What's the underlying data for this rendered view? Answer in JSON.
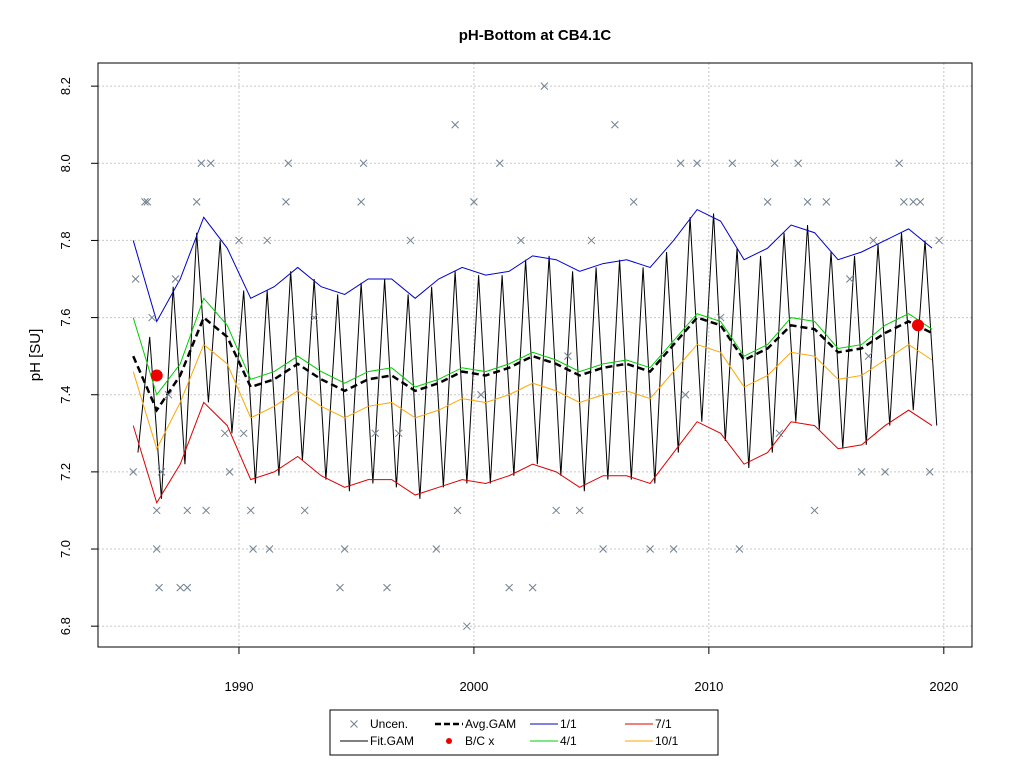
{
  "chart_data": {
    "type": "line",
    "title": "pH-Bottom at CB4.1C",
    "ylabel": "pH [SU]",
    "xlim": [
      1984.0,
      2021.2
    ],
    "ylim": [
      6.746,
      8.26
    ],
    "xticks": [
      1990,
      2000,
      2010,
      2020
    ],
    "yticks": [
      6.8,
      {
        "value": 7,
        "label": "7.0"
      },
      7.2,
      7.4,
      7.6,
      7.8,
      {
        "value": 8,
        "label": "8.0"
      },
      8.2
    ],
    "grid": true,
    "legend": "bottom",
    "series": [
      {
        "name": "Uncen.",
        "style": "points",
        "color": "#708090",
        "x": [
          1985.5,
          1985.6,
          1986.0,
          1986.1,
          1986.3,
          1986.5,
          1986.5,
          1986.6,
          1986.7,
          1987.0,
          1987.3,
          1987.5,
          1987.8,
          1987.8,
          1988.2,
          1988.4,
          1988.6,
          1988.8,
          1989.4,
          1989.6,
          1990.0,
          1990.2,
          1990.5,
          1990.6,
          1991.2,
          1991.3,
          1992.0,
          1992.1,
          1992.8,
          1993.2,
          1994.3,
          1994.5,
          1995.2,
          1995.3,
          1995.8,
          1996.3,
          1996.8,
          1997.3,
          1998.4,
          1999.2,
          1999.3,
          1999.7,
          2000.0,
          2000.3,
          2001.1,
          2001.5,
          2002.0,
          2002.5,
          2003.0,
          2003.5,
          2004.0,
          2004.5,
          2005.0,
          2005.5,
          2006.0,
          2006.8,
          2007.5,
          2008.5,
          2008.8,
          2009.0,
          2009.5,
          2010.5,
          2011.0,
          2011.3,
          2012.5,
          2012.8,
          2013.0,
          2013.8,
          2014.2,
          2014.5,
          2015.0,
          2016.0,
          2016.5,
          2016.8,
          2017.0,
          2017.5,
          2018.1,
          2018.3,
          2018.7,
          2019.0,
          2019.4,
          2019.8
        ],
        "values": [
          7.2,
          7.7,
          7.9,
          7.9,
          7.6,
          7.1,
          7.0,
          6.9,
          7.2,
          7.4,
          7.7,
          6.9,
          6.9,
          7.1,
          7.9,
          8.0,
          7.1,
          8.0,
          7.3,
          7.2,
          7.8,
          7.3,
          7.1,
          7.0,
          7.8,
          7.0,
          7.9,
          8.0,
          7.1,
          7.6,
          6.9,
          7.0,
          7.9,
          8.0,
          7.3,
          6.9,
          7.3,
          7.8,
          7.0,
          8.1,
          7.1,
          6.8,
          7.9,
          7.4,
          8.0,
          6.9,
          7.8,
          6.9,
          8.2,
          7.1,
          7.5,
          7.1,
          7.8,
          7.0,
          8.1,
          7.9,
          7.0,
          7.0,
          8.0,
          7.4,
          8.0,
          7.6,
          8.0,
          7.0,
          7.9,
          8.0,
          7.3,
          8.0,
          7.9,
          7.1,
          7.9,
          7.7,
          7.2,
          7.5,
          7.8,
          7.2,
          8.0,
          7.9,
          7.9,
          7.9,
          7.2,
          7.8
        ]
      },
      {
        "name": "Fit.GAM",
        "style": "line",
        "color": "#000000",
        "x": [
          1985.7,
          1986.2,
          1986.7,
          1987.2,
          1987.7,
          1988.2,
          1988.7,
          1989.2,
          1989.7,
          1990.2,
          1990.7,
          1991.2,
          1991.7,
          1992.2,
          1992.7,
          1993.2,
          1993.7,
          1994.2,
          1994.7,
          1995.2,
          1995.7,
          1996.2,
          1996.7,
          1997.2,
          1997.7,
          1998.2,
          1998.7,
          1999.2,
          1999.7,
          2000.2,
          2000.7,
          2001.2,
          2001.7,
          2002.2,
          2002.7,
          2003.2,
          2003.7,
          2004.2,
          2004.7,
          2005.2,
          2005.7,
          2006.2,
          2006.7,
          2007.2,
          2007.7,
          2008.2,
          2008.7,
          2009.2,
          2009.7,
          2010.2,
          2010.7,
          2011.2,
          2011.7,
          2012.2,
          2012.7,
          2013.2,
          2013.7,
          2014.2,
          2014.7,
          2015.2,
          2015.7,
          2016.2,
          2016.7,
          2017.2,
          2017.7,
          2018.2,
          2018.7,
          2019.2,
          2019.7
        ],
        "values": [
          7.25,
          7.55,
          7.13,
          7.68,
          7.22,
          7.82,
          7.38,
          7.8,
          7.3,
          7.67,
          7.17,
          7.67,
          7.19,
          7.72,
          7.23,
          7.7,
          7.18,
          7.66,
          7.15,
          7.69,
          7.17,
          7.7,
          7.16,
          7.66,
          7.13,
          7.68,
          7.16,
          7.72,
          7.17,
          7.71,
          7.17,
          7.71,
          7.19,
          7.75,
          7.22,
          7.76,
          7.19,
          7.72,
          7.15,
          7.73,
          7.18,
          7.75,
          7.18,
          7.73,
          7.17,
          7.77,
          7.25,
          7.86,
          7.33,
          7.87,
          7.28,
          7.78,
          7.21,
          7.76,
          7.25,
          7.82,
          7.33,
          7.84,
          7.31,
          7.77,
          7.26,
          7.76,
          7.27,
          7.79,
          7.32,
          7.82,
          7.36,
          7.8,
          7.32
        ]
      },
      {
        "name": "Avg.GAM",
        "style": "dashed",
        "color": "#000000",
        "x": [
          1985.5,
          1986.5,
          1987.5,
          1988.5,
          1989.5,
          1990.5,
          1991.5,
          1992.5,
          1993.5,
          1994.5,
          1995.5,
          1996.5,
          1997.5,
          1998.5,
          1999.5,
          2000.5,
          2001.5,
          2002.5,
          2003.5,
          2004.5,
          2005.5,
          2006.5,
          2007.5,
          2008.5,
          2009.5,
          2010.5,
          2011.5,
          2012.5,
          2013.5,
          2014.5,
          2015.5,
          2016.5,
          2017.5,
          2018.5,
          2019.5
        ],
        "values": [
          7.5,
          7.36,
          7.45,
          7.6,
          7.55,
          7.42,
          7.44,
          7.48,
          7.44,
          7.41,
          7.44,
          7.45,
          7.41,
          7.43,
          7.46,
          7.45,
          7.47,
          7.5,
          7.48,
          7.45,
          7.47,
          7.48,
          7.46,
          7.53,
          7.6,
          7.58,
          7.49,
          7.52,
          7.58,
          7.57,
          7.51,
          7.52,
          7.56,
          7.59,
          7.56
        ]
      },
      {
        "name": "B/C x",
        "style": "dots",
        "color": "#ee0000",
        "x": [
          1986.5,
          2018.9
        ],
        "values": [
          7.45,
          7.58
        ]
      },
      {
        "name": "1/1",
        "style": "line",
        "color": "#0000cd",
        "x": [
          1985.5,
          1986.5,
          1987.5,
          1988.5,
          1989.5,
          1990.5,
          1991.5,
          1992.5,
          1993.5,
          1994.5,
          1995.5,
          1996.5,
          1997.5,
          1998.5,
          1999.5,
          2000.5,
          2001.5,
          2002.5,
          2003.5,
          2004.5,
          2005.5,
          2006.5,
          2007.5,
          2008.5,
          2009.5,
          2010.5,
          2011.5,
          2012.5,
          2013.5,
          2014.5,
          2015.5,
          2016.5,
          2017.5,
          2018.5,
          2019.5
        ],
        "values": [
          7.8,
          7.59,
          7.7,
          7.86,
          7.78,
          7.65,
          7.68,
          7.73,
          7.68,
          7.66,
          7.7,
          7.7,
          7.65,
          7.7,
          7.73,
          7.71,
          7.72,
          7.76,
          7.75,
          7.72,
          7.74,
          7.75,
          7.73,
          7.8,
          7.88,
          7.85,
          7.75,
          7.78,
          7.84,
          7.82,
          7.75,
          7.77,
          7.8,
          7.83,
          7.78
        ]
      },
      {
        "name": "4/1",
        "style": "line",
        "color": "#00cc00",
        "x": [
          1985.5,
          1986.5,
          1987.5,
          1988.5,
          1989.5,
          1990.5,
          1991.5,
          1992.5,
          1993.5,
          1994.5,
          1995.5,
          1996.5,
          1997.5,
          1998.5,
          1999.5,
          2000.5,
          2001.5,
          2002.5,
          2003.5,
          2004.5,
          2005.5,
          2006.5,
          2007.5,
          2008.5,
          2009.5,
          2010.5,
          2011.5,
          2012.5,
          2013.5,
          2014.5,
          2015.5,
          2016.5,
          2017.5,
          2018.5,
          2019.5
        ],
        "values": [
          7.6,
          7.4,
          7.48,
          7.65,
          7.58,
          7.44,
          7.46,
          7.5,
          7.46,
          7.43,
          7.46,
          7.47,
          7.42,
          7.44,
          7.47,
          7.46,
          7.48,
          7.51,
          7.49,
          7.46,
          7.48,
          7.49,
          7.47,
          7.54,
          7.61,
          7.59,
          7.5,
          7.53,
          7.6,
          7.59,
          7.52,
          7.53,
          7.58,
          7.61,
          7.57
        ]
      },
      {
        "name": "7/1",
        "style": "line",
        "color": "#dd0000",
        "x": [
          1985.5,
          1986.5,
          1987.5,
          1988.5,
          1989.5,
          1990.5,
          1991.5,
          1992.5,
          1993.5,
          1994.5,
          1995.5,
          1996.5,
          1997.5,
          1998.5,
          1999.5,
          2000.5,
          2001.5,
          2002.5,
          2003.5,
          2004.5,
          2005.5,
          2006.5,
          2007.5,
          2008.5,
          2009.5,
          2010.5,
          2011.5,
          2012.5,
          2013.5,
          2014.5,
          2015.5,
          2016.5,
          2017.5,
          2018.5,
          2019.5
        ],
        "values": [
          7.32,
          7.12,
          7.22,
          7.38,
          7.32,
          7.18,
          7.2,
          7.24,
          7.19,
          7.16,
          7.18,
          7.18,
          7.14,
          7.16,
          7.18,
          7.17,
          7.19,
          7.22,
          7.2,
          7.16,
          7.19,
          7.19,
          7.17,
          7.25,
          7.33,
          7.3,
          7.22,
          7.25,
          7.33,
          7.32,
          7.26,
          7.27,
          7.32,
          7.36,
          7.32
        ]
      },
      {
        "name": "10/1",
        "style": "line",
        "color": "#ffa500",
        "x": [
          1985.5,
          1986.5,
          1987.5,
          1988.5,
          1989.5,
          1990.5,
          1991.5,
          1992.5,
          1993.5,
          1994.5,
          1995.5,
          1996.5,
          1997.5,
          1998.5,
          1999.5,
          2000.5,
          2001.5,
          2002.5,
          2003.5,
          2004.5,
          2005.5,
          2006.5,
          2007.5,
          2008.5,
          2009.5,
          2010.5,
          2011.5,
          2012.5,
          2013.5,
          2014.5,
          2015.5,
          2016.5,
          2017.5,
          2018.5,
          2019.5
        ],
        "values": [
          7.46,
          7.26,
          7.38,
          7.53,
          7.48,
          7.34,
          7.37,
          7.41,
          7.37,
          7.34,
          7.37,
          7.38,
          7.34,
          7.36,
          7.39,
          7.38,
          7.4,
          7.43,
          7.41,
          7.38,
          7.4,
          7.41,
          7.39,
          7.46,
          7.53,
          7.51,
          7.42,
          7.45,
          7.51,
          7.5,
          7.44,
          7.45,
          7.49,
          7.53,
          7.49
        ]
      }
    ]
  }
}
